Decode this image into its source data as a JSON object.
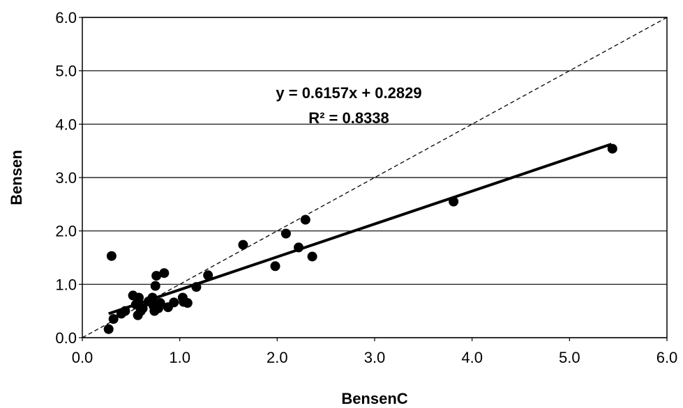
{
  "chart_data": {
    "type": "scatter",
    "xlabel": "BensenC",
    "ylabel": "Bensen",
    "xlim": [
      0,
      6
    ],
    "ylim": [
      0,
      6
    ],
    "x_ticks": [
      "0.0",
      "1.0",
      "2.0",
      "3.0",
      "4.0",
      "5.0",
      "6.0"
    ],
    "y_ticks": [
      "0.0",
      "1.0",
      "2.0",
      "3.0",
      "4.0",
      "5.0",
      "6.0"
    ],
    "grid": "horizontal",
    "legend": "none",
    "annotations": [
      "y = 0.6157x + 0.2829",
      "R² = 0.8338"
    ],
    "trendline": {
      "slope": 0.6157,
      "intercept": 0.2829,
      "x_range": [
        0.27,
        5.43
      ]
    },
    "reference_line": {
      "kind": "1:1",
      "style": "dashed"
    },
    "colors": {
      "points": "#000000",
      "trendline": "#000000",
      "grid": "#000000"
    },
    "points": [
      {
        "x": 0.27,
        "y": 0.16
      },
      {
        "x": 0.3,
        "y": 1.53
      },
      {
        "x": 0.32,
        "y": 0.35
      },
      {
        "x": 0.4,
        "y": 0.45
      },
      {
        "x": 0.44,
        "y": 0.5
      },
      {
        "x": 0.52,
        "y": 0.79
      },
      {
        "x": 0.55,
        "y": 0.62
      },
      {
        "x": 0.57,
        "y": 0.42
      },
      {
        "x": 0.58,
        "y": 0.75
      },
      {
        "x": 0.6,
        "y": 0.5
      },
      {
        "x": 0.62,
        "y": 0.55
      },
      {
        "x": 0.68,
        "y": 0.68
      },
      {
        "x": 0.72,
        "y": 0.75
      },
      {
        "x": 0.73,
        "y": 0.6
      },
      {
        "x": 0.74,
        "y": 0.5
      },
      {
        "x": 0.75,
        "y": 0.97
      },
      {
        "x": 0.76,
        "y": 1.16
      },
      {
        "x": 0.78,
        "y": 0.55
      },
      {
        "x": 0.8,
        "y": 0.65
      },
      {
        "x": 0.84,
        "y": 1.21
      },
      {
        "x": 0.88,
        "y": 0.57
      },
      {
        "x": 0.94,
        "y": 0.66
      },
      {
        "x": 1.03,
        "y": 0.75
      },
      {
        "x": 1.04,
        "y": 0.67
      },
      {
        "x": 1.08,
        "y": 0.65
      },
      {
        "x": 1.17,
        "y": 0.95
      },
      {
        "x": 1.29,
        "y": 1.17
      },
      {
        "x": 1.65,
        "y": 1.74
      },
      {
        "x": 1.98,
        "y": 1.34
      },
      {
        "x": 2.09,
        "y": 1.95
      },
      {
        "x": 2.22,
        "y": 1.69
      },
      {
        "x": 2.29,
        "y": 2.21
      },
      {
        "x": 2.36,
        "y": 1.52
      },
      {
        "x": 3.81,
        "y": 2.55
      },
      {
        "x": 5.44,
        "y": 3.54
      }
    ]
  }
}
